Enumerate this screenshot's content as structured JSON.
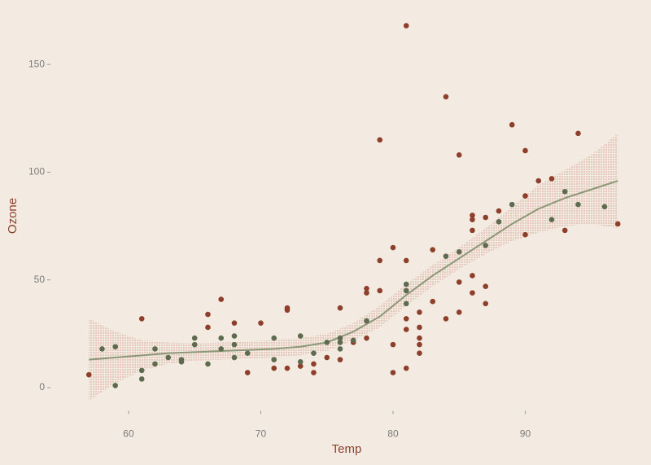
{
  "chart_data": {
    "type": "scatter",
    "x_label": "Temp",
    "y_label": "Ozone",
    "xlim": [
      54.5,
      98.5
    ],
    "xticks": [
      60,
      70,
      80,
      90
    ],
    "ylim": [
      -10,
      175
    ],
    "yticks": [
      0,
      50,
      100,
      150
    ],
    "series": [
      {
        "color": "#8e3f2c",
        "x": [
          57,
          61,
          66,
          66,
          67,
          68,
          69,
          70,
          71,
          72,
          72,
          72,
          73,
          74,
          74,
          75,
          76,
          76,
          77,
          78,
          78,
          78,
          79,
          79,
          79,
          80,
          80,
          80,
          81,
          81,
          81,
          81,
          81,
          82,
          82,
          82,
          82,
          82,
          83,
          83,
          84,
          84,
          85,
          85,
          85,
          86,
          86,
          86,
          86,
          86,
          87,
          87,
          87,
          88,
          89,
          90,
          90,
          90,
          91,
          92,
          93,
          94,
          97
        ],
        "values": [
          6,
          32,
          34,
          28,
          41,
          30,
          7,
          30,
          9,
          9,
          36,
          37,
          10,
          7,
          11,
          14,
          13,
          37,
          21,
          23,
          44,
          46,
          59,
          115,
          45,
          20,
          7,
          65,
          168,
          59,
          9,
          27,
          32,
          16,
          20,
          23,
          28,
          35,
          40,
          64,
          135,
          32,
          108,
          35,
          49,
          80,
          78,
          73,
          44,
          52,
          79,
          47,
          39,
          82,
          122,
          110,
          89,
          71,
          96,
          97,
          73,
          118,
          76
        ]
      },
      {
        "color": "#5f6b4f",
        "x": [
          58,
          59,
          59,
          61,
          61,
          62,
          62,
          63,
          64,
          64,
          65,
          65,
          66,
          67,
          67,
          68,
          68,
          68,
          69,
          71,
          71,
          73,
          73,
          74,
          75,
          76,
          76,
          76,
          77,
          78,
          81,
          81,
          81,
          84,
          85,
          87,
          88,
          89,
          92,
          93,
          94,
          96
        ],
        "values": [
          18,
          19,
          1,
          8,
          4,
          18,
          11,
          14,
          13,
          12,
          23,
          20,
          11,
          23,
          18,
          24,
          20,
          14,
          16,
          23,
          13,
          24,
          12,
          16,
          21,
          23,
          18,
          21,
          22,
          31,
          48,
          45,
          39,
          61,
          63,
          66,
          77,
          85,
          78,
          91,
          85,
          84
        ]
      }
    ],
    "smooth": {
      "color": "#8c9778",
      "band_color": "#e6c9bd",
      "x": [
        57,
        59,
        61,
        63,
        65,
        67,
        69,
        71,
        73,
        75,
        77,
        79,
        81,
        83,
        85,
        87,
        89,
        91,
        93,
        95,
        97
      ],
      "values": [
        13,
        14,
        15,
        16,
        16.5,
        17,
        17.5,
        18,
        19,
        21,
        26,
        33,
        43,
        52,
        60,
        68,
        76,
        83,
        88,
        92,
        96
      ],
      "lower": [
        -6,
        2,
        8,
        11,
        12.5,
        13,
        13.5,
        14,
        15,
        17,
        22,
        28,
        38,
        47,
        55,
        62,
        68,
        72,
        75,
        76,
        74
      ],
      "upper": [
        32,
        26,
        22,
        21,
        20.5,
        21,
        21.5,
        22,
        23,
        25,
        30,
        38,
        48,
        57,
        65,
        74,
        84,
        94,
        101,
        108,
        118
      ]
    }
  }
}
